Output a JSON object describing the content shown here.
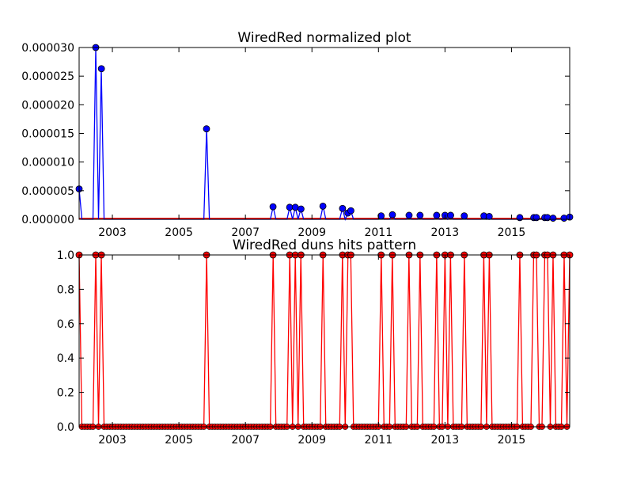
{
  "chart_data": [
    {
      "type": "line",
      "title": "WiredRed normalized plot",
      "xlabel": "",
      "ylabel": "",
      "xlim": [
        2002.0,
        2016.75
      ],
      "ylim": [
        0,
        3e-05
      ],
      "xticks": [
        2003,
        2005,
        2007,
        2009,
        2011,
        2013,
        2015
      ],
      "xtick_labels": [
        "2003",
        "2005",
        "2007",
        "2009",
        "2011",
        "2013",
        "2015"
      ],
      "yticks": [
        0,
        5e-06,
        1e-05,
        1.5e-05,
        2e-05,
        2.5e-05,
        3e-05
      ],
      "ytick_labels": [
        "0.000000",
        "0.000005",
        "0.000010",
        "0.000015",
        "0.000020",
        "0.000025",
        "0.000030"
      ],
      "grid": false,
      "series": [
        {
          "color": "#0000ff",
          "marker": "circle",
          "baseline_color": "#ff0000",
          "points": [
            [
              2002.0,
              5.3e-06
            ],
            [
              2002.5,
              3e-05
            ],
            [
              2002.67,
              2.63e-05
            ],
            [
              2005.83,
              1.58e-05
            ],
            [
              2007.83,
              2.2e-06
            ],
            [
              2008.33,
              2.1e-06
            ],
            [
              2008.5,
              2.1e-06
            ],
            [
              2008.67,
              1.8e-06
            ],
            [
              2009.33,
              2.3e-06
            ],
            [
              2009.92,
              1.9e-06
            ],
            [
              2010.08,
              1.1e-06
            ],
            [
              2010.17,
              1.5e-06
            ],
            [
              2011.08,
              6e-07
            ],
            [
              2011.42,
              8e-07
            ],
            [
              2011.92,
              7e-07
            ],
            [
              2012.25,
              7e-07
            ],
            [
              2012.75,
              7e-07
            ],
            [
              2013.0,
              7e-07
            ],
            [
              2013.17,
              7e-07
            ],
            [
              2013.58,
              6e-07
            ],
            [
              2014.17,
              6e-07
            ],
            [
              2014.33,
              5e-07
            ],
            [
              2015.25,
              3e-07
            ],
            [
              2015.67,
              3e-07
            ],
            [
              2015.75,
              3e-07
            ],
            [
              2016.0,
              3e-07
            ],
            [
              2016.08,
              3e-07
            ],
            [
              2016.25,
              2e-07
            ],
            [
              2016.58,
              2e-07
            ],
            [
              2016.75,
              4e-07
            ]
          ]
        }
      ]
    },
    {
      "type": "line",
      "title": "WiredRed duns hits pattern",
      "xlabel": "",
      "ylabel": "",
      "xlim": [
        2002.0,
        2016.75
      ],
      "ylim": [
        0,
        1
      ],
      "xticks": [
        2003,
        2005,
        2007,
        2009,
        2011,
        2013,
        2015
      ],
      "xtick_labels": [
        "2003",
        "2005",
        "2007",
        "2009",
        "2011",
        "2013",
        "2015"
      ],
      "yticks": [
        0,
        0.2,
        0.4,
        0.6,
        0.8,
        1.0
      ],
      "ytick_labels": [
        "0.0",
        "0.2",
        "0.4",
        "0.6",
        "0.8",
        "1.0"
      ],
      "grid": false,
      "series": [
        {
          "color": "#ff0000",
          "marker": "circle",
          "hit_months": [
            [
              2002.0,
              1
            ],
            [
              2002.5,
              1
            ],
            [
              2002.67,
              1
            ],
            [
              2005.83,
              1
            ],
            [
              2007.83,
              1
            ],
            [
              2008.33,
              1
            ],
            [
              2008.5,
              1
            ],
            [
              2008.67,
              1
            ],
            [
              2009.33,
              1
            ],
            [
              2009.92,
              1
            ],
            [
              2010.08,
              1
            ],
            [
              2010.17,
              1
            ],
            [
              2011.08,
              1
            ],
            [
              2011.42,
              1
            ],
            [
              2011.92,
              1
            ],
            [
              2012.25,
              1
            ],
            [
              2012.75,
              1
            ],
            [
              2013.0,
              1
            ],
            [
              2013.17,
              1
            ],
            [
              2013.58,
              1
            ],
            [
              2014.17,
              1
            ],
            [
              2014.33,
              1
            ],
            [
              2015.25,
              1
            ],
            [
              2015.67,
              1
            ],
            [
              2015.75,
              1
            ],
            [
              2016.0,
              1
            ],
            [
              2016.08,
              1
            ],
            [
              2016.25,
              1
            ],
            [
              2016.58,
              1
            ],
            [
              2016.75,
              1
            ]
          ]
        }
      ]
    }
  ]
}
